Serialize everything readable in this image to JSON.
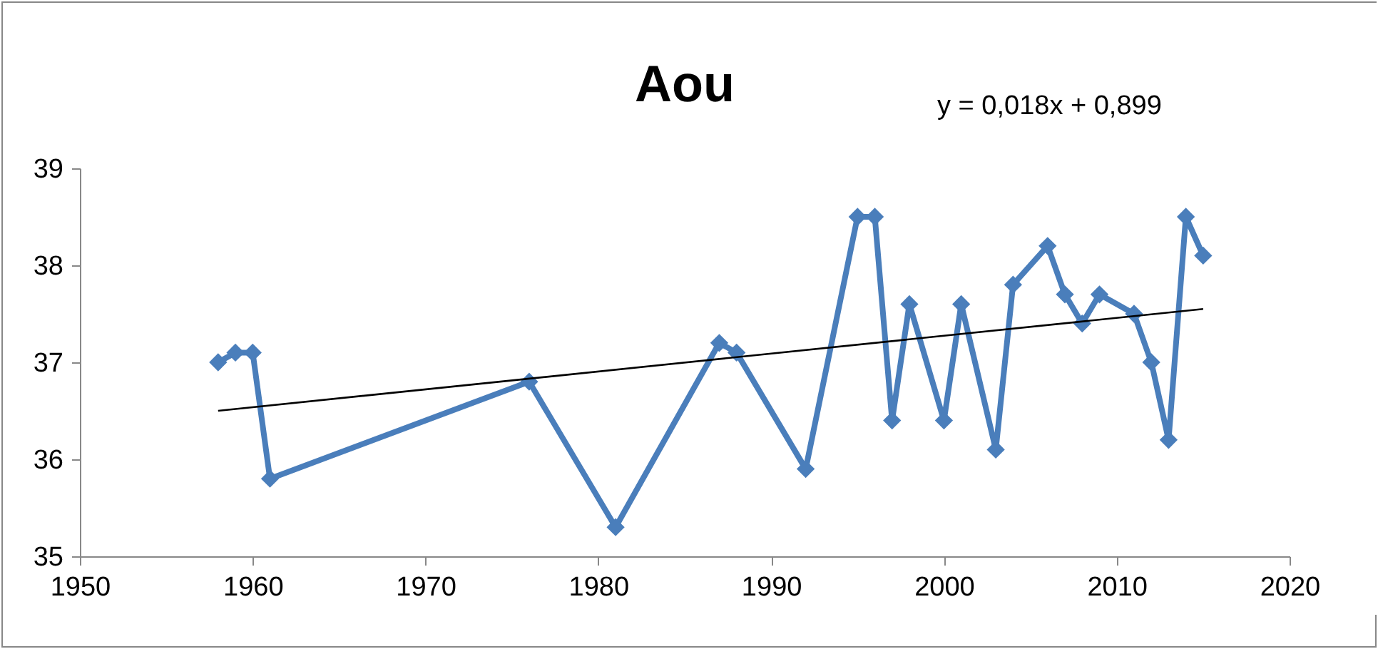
{
  "chart_data": {
    "type": "line",
    "title": "Aou",
    "annotations": [
      "y = 0,018x + 0,899"
    ],
    "x": [
      1958,
      1959,
      1960,
      1961,
      1976,
      1981,
      1987,
      1988,
      1992,
      1995,
      1996,
      1997,
      1998,
      2000,
      2001,
      2003,
      2004,
      2006,
      2007,
      2008,
      2009,
      2011,
      2012,
      2013,
      2014,
      2015
    ],
    "series": [
      {
        "color": "#4a7ebb",
        "marker": "diamond",
        "values": [
          37.0,
          37.1,
          37.1,
          35.8,
          36.8,
          35.3,
          37.2,
          37.1,
          35.9,
          38.5,
          38.5,
          36.4,
          37.6,
          36.4,
          37.6,
          36.1,
          37.8,
          38.2,
          37.7,
          37.4,
          37.7,
          37.5,
          37.0,
          36.2,
          38.5,
          38.1
        ]
      },
      {
        "type": "line",
        "color": "#000000",
        "marker": "none",
        "x": [
          1958,
          2015
        ],
        "values": [
          36.5,
          37.55
        ]
      }
    ],
    "xlim": [
      1950,
      2020
    ],
    "xticks": [
      1950,
      1960,
      1970,
      1980,
      1990,
      2000,
      2010,
      2020
    ],
    "ylim": [
      35,
      39
    ],
    "yticks": [
      35,
      36,
      37,
      38,
      39
    ],
    "grid": false,
    "line_style": "solid"
  }
}
